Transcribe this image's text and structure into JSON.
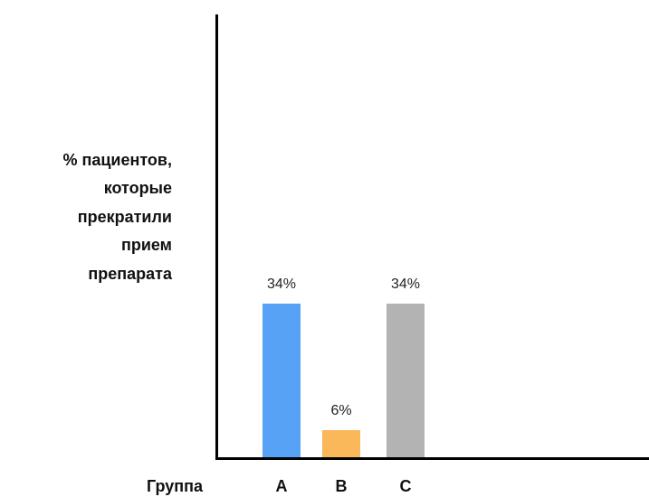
{
  "chart_data": {
    "type": "bar",
    "categories": [
      "A",
      "B",
      "C"
    ],
    "values": [
      34,
      6,
      34
    ],
    "value_labels": [
      "34%",
      "6%",
      "34%"
    ],
    "colors": [
      "#58a2f5",
      "#fbb85a",
      "#b3b3b3"
    ],
    "ylabel_lines": [
      "% пациентов,",
      "которые",
      "прекратили",
      "прием",
      "препарата"
    ],
    "xlabel": "Группа",
    "ylim": [
      0,
      100
    ],
    "grid": false,
    "legend": "none"
  }
}
